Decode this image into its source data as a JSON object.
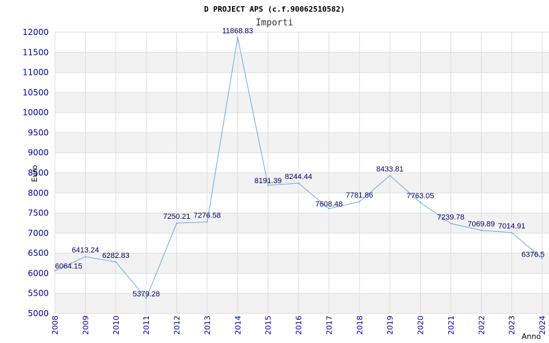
{
  "chart_data": {
    "type": "line",
    "title": "D PROJECT APS (c.f.90062510582)",
    "subtitle": "Importi",
    "xlabel": "Anno",
    "ylabel": "Euro",
    "ylim": [
      5000,
      12000
    ],
    "yticks": [
      5000,
      5500,
      6000,
      6500,
      7000,
      7500,
      8000,
      8500,
      9000,
      9500,
      10000,
      10500,
      11000,
      11500,
      12000
    ],
    "grid": true,
    "x": [
      "2008",
      "2009",
      "2010",
      "2011",
      "2012",
      "2013",
      "2014",
      "2015",
      "2016",
      "2017",
      "2018",
      "2019",
      "2020",
      "2021",
      "2022",
      "2023",
      "2024"
    ],
    "series": [
      {
        "values": [
          6064.15,
          6413.24,
          6282.83,
          5379.28,
          7250.21,
          7276.58,
          11868.83,
          8191.39,
          8244.44,
          7608.48,
          7781.86,
          8433.81,
          7763.05,
          7239.78,
          7069.89,
          7014.91,
          6376.5
        ],
        "labels": [
          "6064.15",
          "6413.24",
          "6282.83",
          "5379.28",
          "7250.21",
          "7276.58",
          "11868.83",
          "8191.39",
          "8244.44",
          "7608.48",
          "7781.86",
          "8433.81",
          "7763.05",
          "7239.78",
          "7069.89",
          "7014.91",
          "6376.5"
        ]
      }
    ],
    "colors": {
      "line": "#66aaee",
      "band": "#f2f2f2",
      "grid": "#dddddd",
      "ticks": "#0000aa",
      "labels": "#000066"
    }
  }
}
